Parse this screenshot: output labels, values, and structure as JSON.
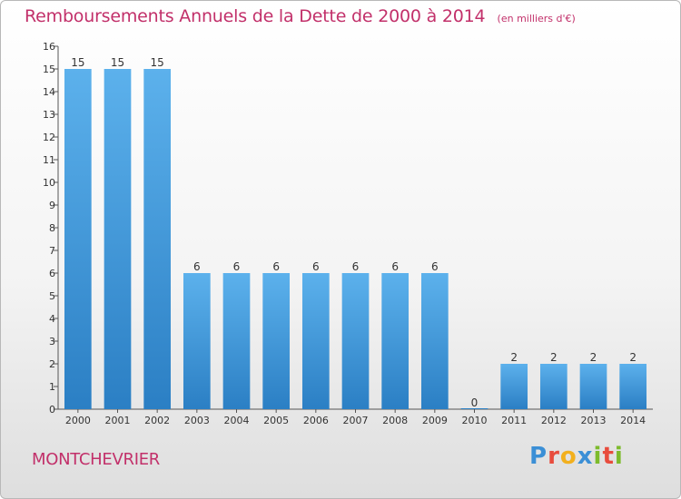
{
  "header": {
    "title": "Remboursements Annuels de la Dette de 2000 à 2014",
    "subtitle": "(en milliers d'€)"
  },
  "footer": {
    "commune": "MONTCHEVRIER",
    "logo_letters": [
      {
        "ch": "P",
        "color": "#3b8fd6"
      },
      {
        "ch": "r",
        "color": "#e84c3d"
      },
      {
        "ch": "o",
        "color": "#f2b01e"
      },
      {
        "ch": "x",
        "color": "#3b8fd6"
      },
      {
        "ch": "i",
        "color": "#7dbb2c"
      },
      {
        "ch": "t",
        "color": "#e84c3d"
      },
      {
        "ch": "i",
        "color": "#7dbb2c"
      }
    ]
  },
  "chart_data": {
    "type": "bar",
    "title": "Remboursements Annuels de la Dette de 2000 à 2014",
    "subtitle": "(en milliers d'€)",
    "categories": [
      "2000",
      "2001",
      "2002",
      "2003",
      "2004",
      "2005",
      "2006",
      "2007",
      "2008",
      "2009",
      "2010",
      "2011",
      "2012",
      "2013",
      "2014"
    ],
    "values": [
      15,
      15,
      15,
      6,
      6,
      6,
      6,
      6,
      6,
      6,
      0,
      2,
      2,
      2,
      2
    ],
    "ylim": [
      0,
      16
    ],
    "yticks": [
      0,
      1,
      2,
      3,
      4,
      5,
      6,
      7,
      8,
      9,
      10,
      11,
      12,
      13,
      14,
      15,
      16
    ],
    "grid": false,
    "bar_color": "#4ea6e6"
  }
}
